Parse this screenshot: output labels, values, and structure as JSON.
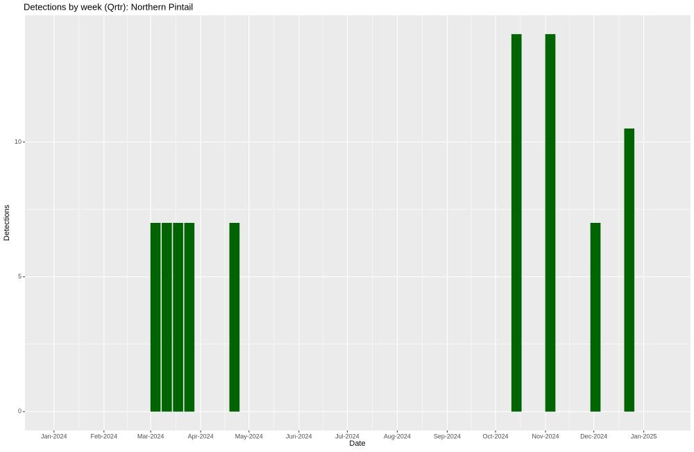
{
  "chart_data": {
    "type": "bar",
    "title": "Detections by week (Qrtr): Northern Pintail",
    "x_label": "Date",
    "y_label": "Detections",
    "x": [
      "2024-03-04",
      "2024-03-11",
      "2024-03-18",
      "2024-03-25",
      "2024-04-22",
      "2024-10-14",
      "2024-11-04",
      "2024-12-02",
      "2024-12-23"
    ],
    "values": [
      7,
      7,
      7,
      7,
      7,
      14,
      14,
      7,
      10.5
    ],
    "color": "#006400",
    "xlim": [
      "2023-12-14",
      "2025-01-30"
    ],
    "xticks": [
      {
        "value": "2024-01-01",
        "label": "Jan-2024"
      },
      {
        "value": "2024-02-01",
        "label": "Feb-2024"
      },
      {
        "value": "2024-03-01",
        "label": "Mar-2024"
      },
      {
        "value": "2024-04-01",
        "label": "Apr-2024"
      },
      {
        "value": "2024-05-01",
        "label": "May-2024"
      },
      {
        "value": "2024-06-01",
        "label": "Jun-2024"
      },
      {
        "value": "2024-07-01",
        "label": "Jul-2024"
      },
      {
        "value": "2024-08-01",
        "label": "Aug-2024"
      },
      {
        "value": "2024-09-01",
        "label": "Sep-2024"
      },
      {
        "value": "2024-10-01",
        "label": "Oct-2024"
      },
      {
        "value": "2024-11-01",
        "label": "Nov-2024"
      },
      {
        "value": "2024-12-01",
        "label": "Dec-2024"
      },
      {
        "value": "2025-01-01",
        "label": "Jan-2025"
      }
    ],
    "ylim": [
      -0.7,
      14.7
    ],
    "yticks": [
      0,
      5,
      10
    ],
    "grid": true
  }
}
